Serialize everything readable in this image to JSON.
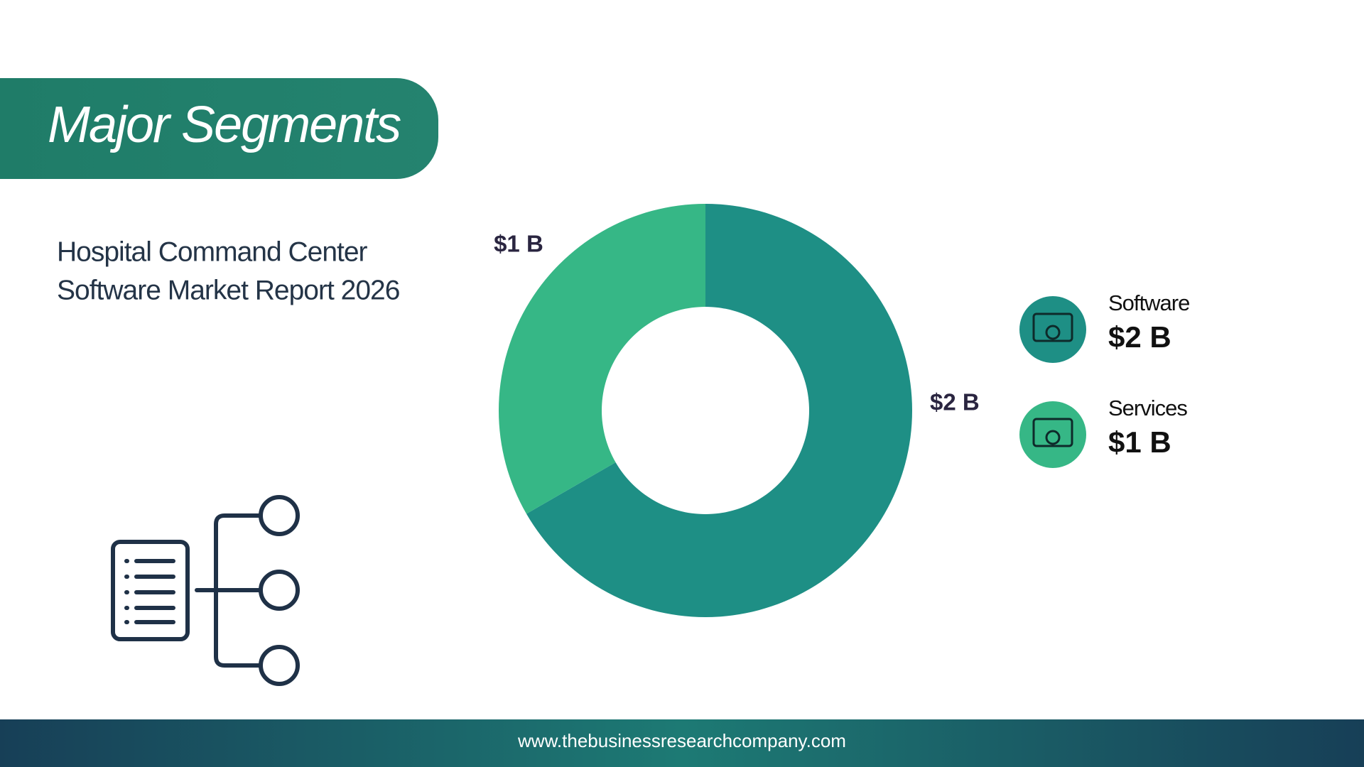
{
  "header": {
    "title": "Major Segments",
    "subtitle_lines": [
      "Hospital Command Center",
      "Software Market Report 2026"
    ]
  },
  "chart_data": {
    "type": "pie",
    "donut": true,
    "categories": [
      "Software",
      "Services"
    ],
    "values": [
      2,
      1
    ],
    "value_labels": [
      "$2 B",
      "$1 B"
    ],
    "colors": [
      "#1e8f85",
      "#36b786"
    ]
  },
  "footer": {
    "url": "www.thebusinessresearchcompany.com"
  }
}
